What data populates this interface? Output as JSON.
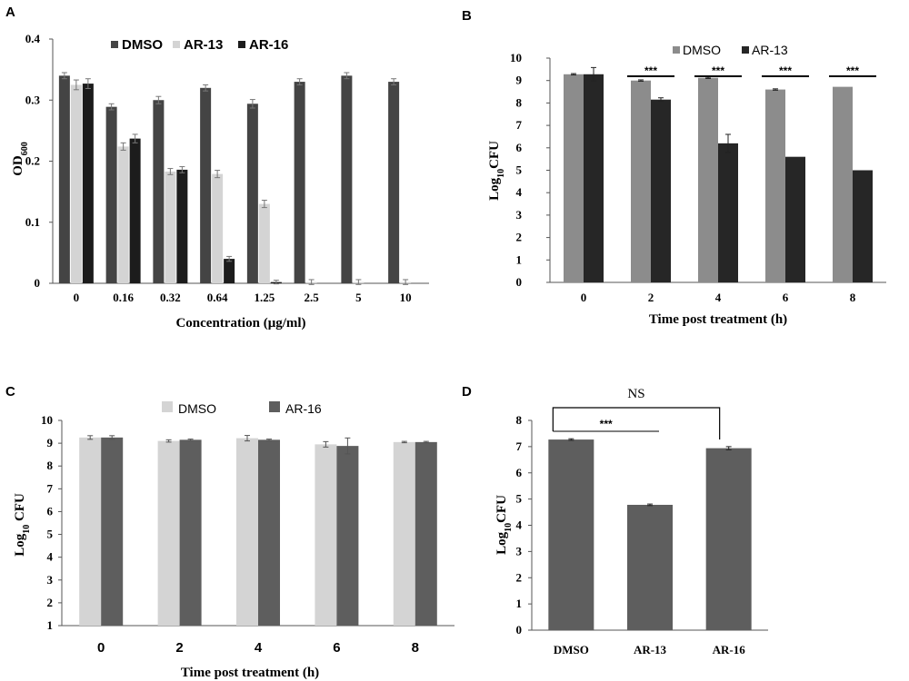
{
  "panels": {
    "A": {
      "letter": "A"
    },
    "B": {
      "letter": "B"
    },
    "C": {
      "letter": "C"
    },
    "D": {
      "letter": "D"
    }
  },
  "colors": {
    "dmso_dark": "#444444",
    "ar13_light": "#d4d4d4",
    "ar16_black": "#1c1c1c",
    "dmso_mid": "#8c8c8c",
    "ar13_black": "#262626",
    "dmso_light": "#d4d4d4",
    "ar16_gray": "#5e5e5e",
    "bar_gray": "#5e5e5e",
    "axis": "#555555"
  },
  "chart_data": [
    {
      "id": "A",
      "type": "bar",
      "title": "",
      "xlabel": "Concentration (μg/ml)",
      "ylabel": "OD600",
      "ylabel_main": "OD",
      "ylabel_sub": "600",
      "ylim": [
        0,
        0.4
      ],
      "yticks": [
        0,
        0.1,
        0.2,
        0.3,
        0.4
      ],
      "ytick_labels": [
        "0",
        "0.1",
        "0.2",
        "0.3",
        "0.4"
      ],
      "categories": [
        "0",
        "0.16",
        "0.32",
        "0.64",
        "1.25",
        "2.5",
        "5",
        "10"
      ],
      "series": [
        {
          "name": "DMSO",
          "color": "#444444",
          "values": [
            0.34,
            0.289,
            0.3,
            0.32,
            0.294,
            0.33,
            0.34,
            0.33
          ],
          "errors": [
            0.005,
            0.005,
            0.006,
            0.005,
            0.007,
            0.005,
            0.005,
            0.005
          ]
        },
        {
          "name": "AR-13",
          "color": "#d4d4d4",
          "values": [
            0.325,
            0.224,
            0.183,
            0.179,
            0.13,
            0.002,
            0.002,
            0.002
          ],
          "errors": [
            0.008,
            0.006,
            0.005,
            0.006,
            0.006,
            0.004,
            0.004,
            0.004
          ]
        },
        {
          "name": "AR-16",
          "color": "#1c1c1c",
          "values": [
            0.327,
            0.237,
            0.186,
            0.04,
            0.002,
            0,
            0,
            0
          ],
          "errors": [
            0.008,
            0.007,
            0.005,
            0.004,
            0.003,
            0,
            0,
            0
          ]
        }
      ],
      "legend": [
        "DMSO",
        "AR-13",
        "AR-16"
      ],
      "legend_position": "top"
    },
    {
      "id": "B",
      "type": "bar",
      "title": "",
      "xlabel": "Time post treatment (h)",
      "ylabel": "Log10CFU",
      "ylabel_main": "Log",
      "ylabel_sub": "10",
      "ylabel_rest": "CFU",
      "ylim": [
        0,
        10
      ],
      "yticks": [
        0,
        1,
        2,
        3,
        4,
        5,
        6,
        7,
        8,
        9,
        10
      ],
      "ytick_labels": [
        "0",
        "1",
        "2",
        "3",
        "4",
        "5",
        "6",
        "7",
        "8",
        "9",
        "10"
      ],
      "categories": [
        "0",
        "2",
        "4",
        "6",
        "8"
      ],
      "series": [
        {
          "name": "DMSO",
          "color": "#8c8c8c",
          "values": [
            9.28,
            9.0,
            9.12,
            8.6,
            8.72
          ],
          "errors": [
            0.03,
            0.03,
            0.03,
            0.03,
            0.0
          ]
        },
        {
          "name": "AR-13",
          "color": "#262626",
          "values": [
            9.28,
            8.15,
            6.2,
            5.6,
            5.0
          ],
          "errors": [
            0.3,
            0.08,
            0.4,
            0.0,
            0.0
          ]
        }
      ],
      "significance": [
        {
          "category": "2",
          "label": "***"
        },
        {
          "category": "4",
          "label": "***"
        },
        {
          "category": "6",
          "label": "***"
        },
        {
          "category": "8",
          "label": "***"
        }
      ],
      "legend": [
        "DMSO",
        "AR-13"
      ],
      "legend_position": "top"
    },
    {
      "id": "C",
      "type": "bar",
      "title": "",
      "xlabel": "Time post treatment (h)",
      "ylabel": "Log10 CFU",
      "ylabel_main": "Log",
      "ylabel_sub": "10",
      "ylabel_rest": " CFU",
      "ylim": [
        1,
        10
      ],
      "yticks": [
        1,
        2,
        3,
        4,
        5,
        6,
        7,
        8,
        9,
        10
      ],
      "ytick_labels": [
        "1",
        "2",
        "3",
        "4",
        "5",
        "6",
        "7",
        "8",
        "9",
        "10"
      ],
      "categories": [
        "0",
        "2",
        "4",
        "6",
        "8"
      ],
      "series": [
        {
          "name": "DMSO",
          "color": "#d4d4d4",
          "values": [
            9.25,
            9.1,
            9.22,
            8.95,
            9.05
          ],
          "errors": [
            0.08,
            0.05,
            0.12,
            0.12,
            0.03
          ]
        },
        {
          "name": "AR-16",
          "color": "#5e5e5e",
          "values": [
            9.25,
            9.15,
            9.15,
            8.88,
            9.05
          ],
          "errors": [
            0.08,
            0.03,
            0.03,
            0.35,
            0.03
          ]
        }
      ],
      "legend": [
        "DMSO",
        "AR-16"
      ],
      "legend_position": "top"
    },
    {
      "id": "D",
      "type": "bar",
      "title": "",
      "xlabel": "",
      "ylabel": "Log10CFU",
      "ylabel_main": "Log",
      "ylabel_sub": "10",
      "ylabel_rest": "CFU",
      "ylim": [
        0,
        8
      ],
      "yticks": [
        0,
        1,
        2,
        3,
        4,
        5,
        6,
        7,
        8
      ],
      "ytick_labels": [
        "0",
        "1",
        "2",
        "3",
        "4",
        "5",
        "6",
        "7",
        "8"
      ],
      "categories": [
        "DMSO",
        "AR-13",
        "AR-16"
      ],
      "values": [
        7.27,
        4.78,
        6.94
      ],
      "errors": [
        0.03,
        0.03,
        0.06
      ],
      "color": "#5e5e5e",
      "comparisons": [
        {
          "from": "DMSO",
          "to": "AR-13",
          "label": "***"
        },
        {
          "from": "DMSO",
          "to": "AR-16",
          "label": "NS"
        }
      ]
    }
  ]
}
